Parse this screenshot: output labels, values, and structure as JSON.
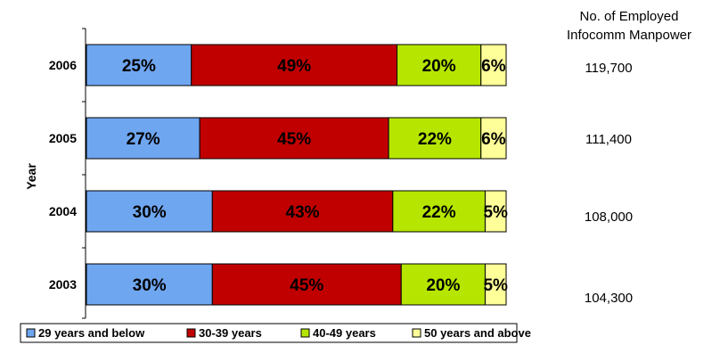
{
  "chart_data": {
    "type": "bar",
    "orientation": "horizontal",
    "stacked": true,
    "percent": true,
    "ylabel": "Year",
    "categories": [
      "2006",
      "2005",
      "2004",
      "2003"
    ],
    "series": [
      {
        "name": "29 years and below",
        "color": "#6fa6f0",
        "values": [
          25,
          27,
          30,
          30
        ],
        "labels": [
          "25%",
          "27%",
          "30%",
          "30%"
        ]
      },
      {
        "name": "30-39 years",
        "color": "#c00000",
        "values": [
          49,
          45,
          43,
          45
        ],
        "labels": [
          "49%",
          "45%",
          "43%",
          "45%"
        ]
      },
      {
        "name": "40-49 years",
        "color": "#b6e600",
        "values": [
          20,
          22,
          22,
          20
        ],
        "labels": [
          "20%",
          "22%",
          "22%",
          "20%"
        ]
      },
      {
        "name": "50 years and above",
        "color": "#ffff99",
        "values": [
          6,
          6,
          5,
          5
        ],
        "labels": [
          "6%",
          "6%",
          "5%",
          "5%"
        ]
      }
    ],
    "legend_position": "bottom",
    "grid": false
  },
  "side_panel": {
    "title_line1": "No. of Employed",
    "title_line2": "Infocomm Manpower",
    "values": [
      "119,700",
      "111,400",
      "108,000",
      "104,300"
    ]
  }
}
